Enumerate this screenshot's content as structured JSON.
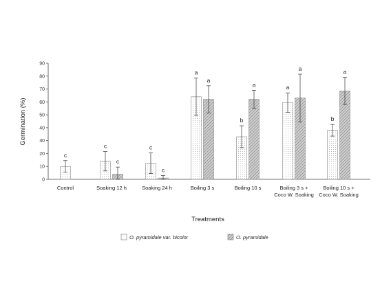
{
  "chart_data": {
    "type": "bar",
    "ylabel": "Germination (%)",
    "xlabel": "Treatments",
    "ylim": [
      0,
      90
    ],
    "yticks": [
      "0",
      "10",
      "20",
      "30",
      "40",
      "50",
      "60",
      "70",
      "80",
      "90"
    ],
    "categories": [
      [
        "Control"
      ],
      [
        "Soaking 12 h"
      ],
      [
        "Soaking 24 h"
      ],
      [
        "Boiling 3 s"
      ],
      [
        "Boiling 10 s"
      ],
      [
        "Boiling 3 s +",
        "Coco W. Soaking"
      ],
      [
        "Boiling 10 s +",
        "Coco W. Soaking"
      ]
    ],
    "series": [
      {
        "name": "O. pyramidale var. bicolor",
        "pattern": "dots",
        "values": [
          10,
          14,
          12.5,
          64,
          33,
          59.5,
          38
        ],
        "errors": [
          4.5,
          7.5,
          8,
          14.5,
          8.5,
          7.5,
          4.5
        ],
        "letters": [
          "c",
          "c",
          "c",
          "a",
          "b",
          "a",
          "b"
        ]
      },
      {
        "name": "O. pyramidale",
        "pattern": "hatch",
        "values": [
          null,
          4,
          1,
          62,
          62,
          63,
          68.5
        ],
        "errors": [
          null,
          5.5,
          2,
          10.5,
          7,
          18.5,
          10.5
        ],
        "letters": [
          null,
          "c",
          "c",
          "a",
          "a",
          "a",
          "a"
        ]
      }
    ],
    "grid": false,
    "legend": "bottom-center"
  }
}
